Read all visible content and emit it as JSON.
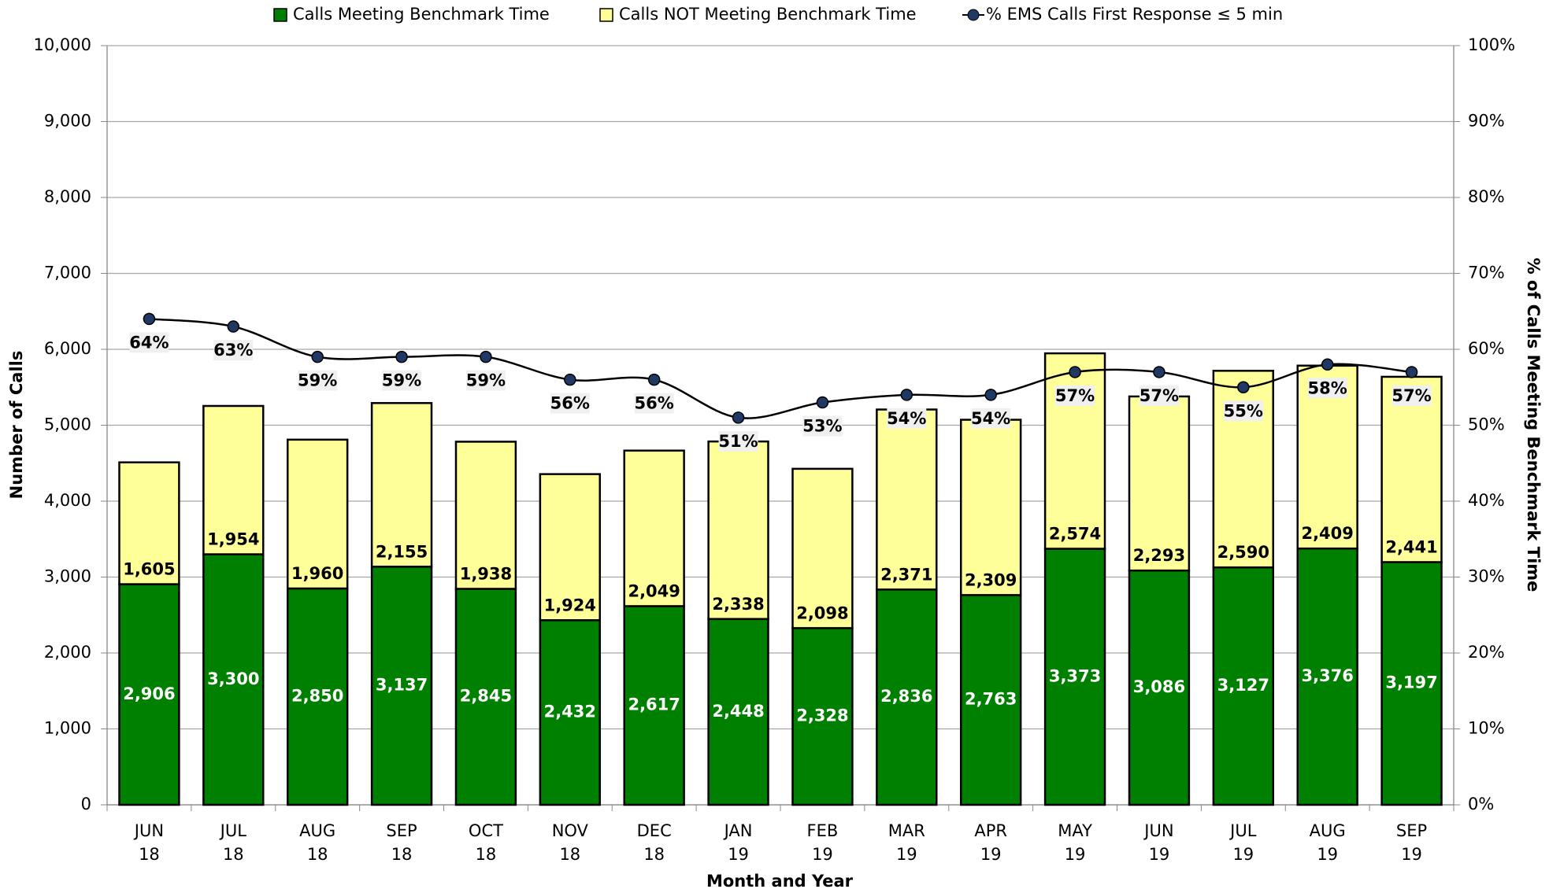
{
  "chart_data": {
    "type": "bar",
    "x_label": "Month and Year",
    "y_label": "Number of Calls",
    "y2_label": "% of Calls Meeting Benchmark Time",
    "categories": [
      [
        "JUN",
        "18"
      ],
      [
        "JUL",
        "18"
      ],
      [
        "AUG",
        "18"
      ],
      [
        "SEP",
        "18"
      ],
      [
        "OCT",
        "18"
      ],
      [
        "NOV",
        "18"
      ],
      [
        "DEC",
        "18"
      ],
      [
        "JAN",
        "19"
      ],
      [
        "FEB",
        "19"
      ],
      [
        "MAR",
        "19"
      ],
      [
        "APR",
        "19"
      ],
      [
        "MAY",
        "19"
      ],
      [
        "JUN",
        "19"
      ],
      [
        "JUL",
        "19"
      ],
      [
        "AUG",
        "19"
      ],
      [
        "SEP",
        "19"
      ]
    ],
    "series": [
      {
        "name": "Calls Meeting Benchmark Time",
        "color": "#008000",
        "type": "bar",
        "values": [
          2906,
          3300,
          2850,
          3137,
          2845,
          2432,
          2617,
          2448,
          2328,
          2836,
          2763,
          3373,
          3086,
          3127,
          3376,
          3197
        ],
        "value_labels": [
          "2,906",
          "3,300",
          "2,850",
          "3,137",
          "2,845",
          "2,432",
          "2,617",
          "2,448",
          "2,328",
          "2,836",
          "2,763",
          "3,373",
          "3,086",
          "3,127",
          "3,376",
          "3,197"
        ]
      },
      {
        "name": "Calls NOT Meeting Benchmark Time",
        "color": "#ffff99",
        "type": "bar",
        "values": [
          1605,
          1954,
          1960,
          2155,
          1938,
          1924,
          2049,
          2338,
          2098,
          2371,
          2309,
          2574,
          2293,
          2590,
          2409,
          2441
        ],
        "value_labels": [
          "1,605",
          "1,954",
          "1,960",
          "2,155",
          "1,938",
          "1,924",
          "2,049",
          "2,338",
          "2,098",
          "2,371",
          "2,309",
          "2,574",
          "2,293",
          "2,590",
          "2,409",
          "2,441"
        ]
      },
      {
        "name": "% EMS Calls First Response ≤ 5 min",
        "color": "#1f3864",
        "type": "line",
        "axis": "y2",
        "values": [
          64,
          63,
          59,
          59,
          59,
          56,
          56,
          51,
          53,
          54,
          54,
          57,
          57,
          55,
          58,
          57
        ],
        "value_labels": [
          "64%",
          "63%",
          "59%",
          "59%",
          "59%",
          "56%",
          "56%",
          "51%",
          "53%",
          "54%",
          "54%",
          "57%",
          "57%",
          "55%",
          "58%",
          "57%"
        ]
      }
    ],
    "stacked": true,
    "ylim": [
      0,
      10000
    ],
    "yticks": [
      0,
      {
        "value": 1000,
        "label": "1,000"
      },
      {
        "value": 2000,
        "label": "2,000"
      },
      {
        "value": 3000,
        "label": "3,000"
      },
      {
        "value": 4000,
        "label": "4,000"
      },
      {
        "value": 5000,
        "label": "5,000"
      },
      {
        "value": 6000,
        "label": "6,000"
      },
      {
        "value": 7000,
        "label": "7,000"
      },
      {
        "value": 8000,
        "label": "8,000"
      },
      {
        "value": 9000,
        "label": "9,000"
      },
      {
        "value": 10000,
        "label": "10,000"
      }
    ],
    "y2lim": [
      0,
      100
    ],
    "y2ticks": [
      {
        "value": 0,
        "label": "0%"
      },
      {
        "value": 10,
        "label": "10%"
      },
      {
        "value": 20,
        "label": "20%"
      },
      {
        "value": 30,
        "label": "30%"
      },
      {
        "value": 40,
        "label": "40%"
      },
      {
        "value": 50,
        "label": "50%"
      },
      {
        "value": 60,
        "label": "60%"
      },
      {
        "value": 70,
        "label": "70%"
      },
      {
        "value": 80,
        "label": "80%"
      },
      {
        "value": 90,
        "label": "90%"
      },
      {
        "value": 100,
        "label": "100%"
      }
    ],
    "grid": true,
    "legend": "top"
  }
}
